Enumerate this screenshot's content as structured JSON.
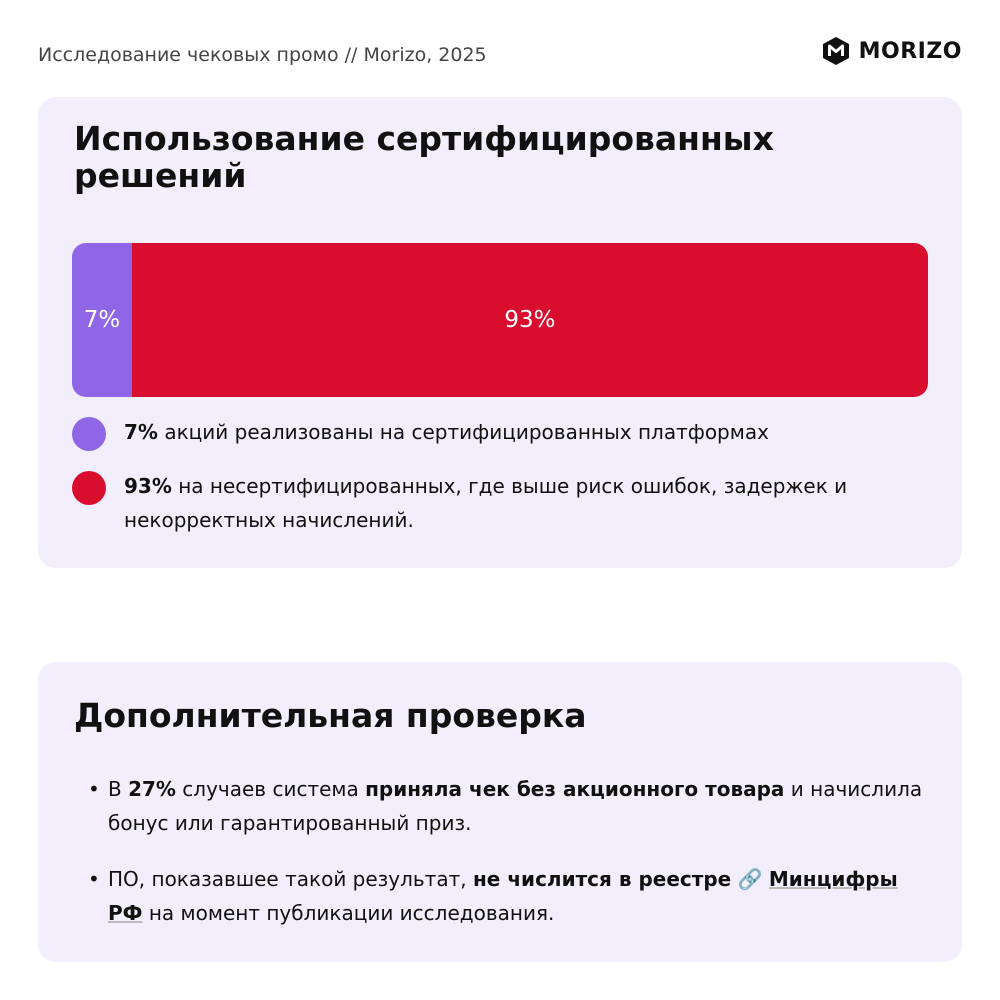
{
  "header": {
    "caption": "Исследование чековых промо // Morizo, 2025",
    "logo_text": "MORIZO"
  },
  "colors": {
    "accent_purple": "#8e66e6",
    "accent_red": "#d90d2e",
    "card_bg": "#f2eefc"
  },
  "card1": {
    "title": "Использование сертифицированных решений"
  },
  "chart_data": {
    "type": "bar",
    "orientation": "horizontal-stacked",
    "unit": "%",
    "series": [
      {
        "label": "7%",
        "value": 7,
        "color": "#8e66e6"
      },
      {
        "label": "93%",
        "value": 93,
        "color": "#d90d2e"
      }
    ],
    "legend": [
      {
        "bold": "7%",
        "text": " акций реализованы на сертифицированных платформах",
        "color": "#8e66e6"
      },
      {
        "bold": "93%",
        "text": " на несертифицированных, где выше риск ошибок, задержек и некорректных начислений.",
        "color": "#d90d2e"
      }
    ]
  },
  "card2": {
    "title": "Дополнительная проверка",
    "bullet1": {
      "t1": "В ",
      "b1": "27%",
      "t2": " случаев система ",
      "b2": "приняла чек без акционного товара",
      "t3": " и начислила бонус или гарантированный приз."
    },
    "bullet2": {
      "t1": "ПО, показавшее такой результат, ",
      "b1": "не числится в реестре",
      "link_icon": "🔗",
      "link_text": "Минцифры РФ",
      "t2": " на момент публикации исследования."
    }
  }
}
